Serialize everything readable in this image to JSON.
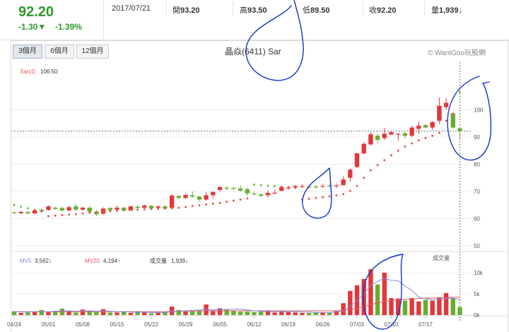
{
  "quote": {
    "price": "92.20",
    "change": "-1.30▼",
    "change_pct": "-1.39%",
    "date": "2017/07/21",
    "open_label": "開",
    "open": "93.20",
    "high_label": "高",
    "high": "93.50",
    "low_label": "低",
    "low": "89.50",
    "close_label": "收",
    "close": "92.20",
    "volume_label": "量",
    "volume": "1,939↓"
  },
  "tabs": [
    "3個月",
    "6個月",
    "12個月"
  ],
  "active_tab": 0,
  "title": "晶焱(6411) Sar",
  "credit": "© WantGoo玩股網",
  "legend": {
    "sar_label": "Sar(4)",
    "sar_value": "106.50"
  },
  "volume_legend": {
    "mv5_label": "MV5",
    "mv5_value": "3,562↓",
    "mv20_label": "MV20",
    "mv20_value": "4,194↑",
    "vol_label": "成交量",
    "vol_value": "1,939↓",
    "panel_title": "成交量"
  },
  "colors": {
    "up": "#e0383b",
    "down": "#69ad30",
    "sar": "#e6594b",
    "sar_down": "#6bbf3a",
    "mv5": "#7b8ce0",
    "mv20": "#e05a63",
    "annotation": "#1732c8"
  },
  "chart_data": {
    "type": "candlestick",
    "price_yticks": [
      50,
      60,
      70,
      80,
      90,
      100
    ],
    "volume_yticks": [
      "0k",
      "5k",
      "10k"
    ],
    "x_ticks": [
      "04/24",
      "05/01",
      "05/08",
      "05/15",
      "05/22",
      "05/29",
      "06/05",
      "06/12",
      "06/19",
      "06/26",
      "07/03",
      "07/10",
      "07/17"
    ],
    "candles": [
      [
        62.3,
        62.0,
        62.6,
        61.8
      ],
      [
        62.0,
        62.5,
        62.8,
        61.7
      ],
      [
        62.4,
        61.9,
        62.7,
        61.6
      ],
      [
        61.9,
        63.0,
        63.3,
        61.6
      ],
      [
        63.3,
        62.8,
        63.8,
        62.4
      ],
      [
        63.2,
        64.5,
        64.9,
        62.9
      ],
      [
        64.0,
        63.6,
        64.4,
        63.2
      ],
      [
        63.9,
        63.0,
        64.4,
        62.6
      ],
      [
        63.0,
        64.2,
        64.6,
        62.7
      ],
      [
        64.5,
        63.3,
        65.5,
        62.9
      ],
      [
        63.3,
        64.0,
        64.4,
        62.9
      ],
      [
        64.0,
        62.5,
        64.5,
        62.1
      ],
      [
        62.6,
        61.6,
        63.2,
        61.0
      ],
      [
        61.8,
        63.7,
        64.2,
        61.4
      ],
      [
        63.9,
        63.1,
        64.3,
        62.7
      ],
      [
        63.3,
        64.0,
        64.8,
        62.9
      ],
      [
        64.0,
        63.0,
        64.3,
        62.6
      ],
      [
        63.0,
        64.5,
        64.8,
        62.7
      ],
      [
        64.4,
        64.0,
        64.9,
        63.4
      ],
      [
        64.0,
        64.8,
        65.2,
        63.6
      ],
      [
        64.7,
        63.8,
        65.0,
        63.4
      ],
      [
        64.0,
        64.5,
        64.9,
        63.5
      ],
      [
        64.5,
        63.8,
        64.9,
        63.4
      ],
      [
        64.0,
        68.5,
        69.0,
        63.8
      ],
      [
        68.3,
        67.6,
        68.8,
        67.0
      ],
      [
        67.6,
        68.7,
        69.3,
        67.2
      ],
      [
        68.6,
        68.1,
        70.0,
        67.6
      ],
      [
        68.1,
        67.0,
        68.5,
        66.4
      ],
      [
        67.0,
        68.6,
        69.8,
        66.6
      ],
      [
        68.6,
        69.8,
        70.0,
        67.4
      ],
      [
        70.5,
        71.6,
        72.0,
        70.0
      ],
      [
        71.4,
        71.1,
        71.8,
        70.4
      ],
      [
        71.2,
        71.1,
        71.9,
        70.7
      ],
      [
        71.1,
        70.3,
        72.3,
        69.8
      ],
      [
        70.8,
        69.3,
        71.4,
        68.4
      ],
      [
        69.2,
        68.9,
        69.8,
        68.6
      ],
      [
        68.9,
        68.4,
        69.3,
        67.8
      ],
      [
        68.6,
        69.5,
        70.4,
        67.8
      ],
      [
        69.3,
        69.5,
        70.6,
        69.0
      ],
      [
        70.2,
        71.6,
        72.1,
        70.4
      ],
      [
        71.2,
        71.4,
        72.0,
        70.5
      ],
      [
        71.5,
        72.0,
        72.4,
        71.4
      ],
      [
        71.6,
        71.9,
        72.6,
        71.4
      ],
      [
        71.8,
        71.7,
        72.3,
        71.2
      ],
      [
        71.8,
        71.5,
        72.2,
        71.1
      ],
      [
        71.9,
        72.0,
        72.7,
        71.5
      ],
      [
        72.2,
        72.0,
        72.5,
        71.5
      ],
      [
        72.0,
        72.2,
        73.0,
        71.2
      ],
      [
        72.3,
        74.4,
        75.6,
        72.4
      ],
      [
        75.0,
        78.0,
        78.4,
        73.6
      ],
      [
        79.0,
        84.0,
        84.3,
        78.6
      ],
      [
        84.0,
        87.5,
        88.1,
        83.5
      ],
      [
        87.3,
        91.0,
        91.8,
        86.9
      ],
      [
        90.5,
        89.0,
        91.2,
        88.0
      ],
      [
        89.6,
        91.2,
        93.4,
        88.9
      ],
      [
        90.9,
        91.8,
        92.2,
        90.8
      ],
      [
        91.1,
        91.2,
        91.6,
        88.6
      ],
      [
        91.4,
        90.5,
        91.8,
        89.5
      ],
      [
        90.5,
        93.5,
        94.2,
        89.8
      ],
      [
        93.0,
        94.2,
        95.7,
        91.2
      ],
      [
        94.4,
        93.5,
        94.7,
        93.2
      ],
      [
        93.5,
        95.5,
        95.9,
        92.6
      ],
      [
        96.0,
        101.5,
        104.5,
        94.8
      ],
      [
        101.0,
        102.6,
        104.3,
        100.1
      ],
      [
        98.7,
        93.5,
        99.2,
        93.1
      ],
      [
        93.2,
        92.2,
        93.5,
        89.5
      ]
    ],
    "sar": [
      65.0,
      64.4,
      63.8,
      63.2,
      62.6,
      60.9,
      61.1,
      61.3,
      61.5,
      61.7,
      61.9,
      62.1,
      62.3,
      62.5,
      62.7,
      62.9,
      63.1,
      63.2,
      63.3,
      63.4,
      63.5,
      63.6,
      63.7,
      63.8,
      64.0,
      64.3,
      64.6,
      64.9,
      65.2,
      65.5,
      65.8,
      66.2,
      66.6,
      67.0,
      67.4,
      72.5,
      72.3,
      72.1,
      71.9,
      71.7,
      71.5,
      71.3,
      67.0,
      67.3,
      67.6,
      67.9,
      68.2,
      68.6,
      69.0,
      70.2,
      72.0,
      75.0,
      77.8,
      79.7,
      81.5,
      83.3,
      85.0,
      86.5,
      87.7,
      88.8,
      89.6,
      90.5,
      91.5,
      96.0,
      98.5,
      106.5
    ],
    "volume_k": [
      0.9,
      0.5,
      0.6,
      0.8,
      1.2,
      0.7,
      1.0,
      1.5,
      0.9,
      0.6,
      1.3,
      1.0,
      0.7,
      1.4,
      0.6,
      0.6,
      0.8,
      0.5,
      0.9,
      0.6,
      0.4,
      0.5,
      0.6,
      2.0,
      1.2,
      0.8,
      0.9,
      1.0,
      2.5,
      0.9,
      1.6,
      1.3,
      1.0,
      0.8,
      0.8,
      0.7,
      0.8,
      1.1,
      0.6,
      0.9,
      0.7,
      0.6,
      0.5,
      0.5,
      0.7,
      0.6,
      0.5,
      0.9,
      2.8,
      5.7,
      7.0,
      8.5,
      10.8,
      7.2,
      10.0,
      4.0,
      3.9,
      3.4,
      4.0,
      3.2,
      3.6,
      3.4,
      4.2,
      5.2,
      4.0,
      1.9
    ],
    "mv5_k": [
      0.8,
      0.7,
      0.7,
      0.8,
      0.8,
      0.8,
      0.9,
      1.0,
      1.0,
      0.9,
      1.0,
      1.0,
      0.9,
      1.0,
      0.9,
      0.8,
      0.8,
      0.7,
      0.6,
      0.7,
      0.6,
      0.6,
      0.6,
      0.8,
      0.9,
      1.0,
      1.1,
      1.2,
      1.3,
      1.2,
      1.4,
      1.3,
      1.4,
      1.4,
      1.2,
      1.0,
      0.9,
      0.8,
      0.8,
      0.8,
      0.8,
      0.8,
      0.7,
      0.7,
      0.6,
      0.6,
      0.6,
      0.7,
      1.0,
      2.1,
      3.4,
      4.9,
      7.0,
      7.9,
      8.7,
      8.2,
      8.1,
      6.8,
      5.9,
      4.2,
      3.9,
      3.6,
      3.7,
      3.9,
      4.0,
      3.6
    ],
    "mv20_k": [
      0.8,
      0.8,
      0.8,
      0.8,
      0.8,
      0.8,
      0.8,
      0.8,
      0.8,
      0.8,
      0.8,
      0.8,
      0.8,
      0.8,
      0.8,
      0.8,
      0.8,
      0.8,
      0.8,
      0.8,
      0.8,
      0.8,
      0.8,
      0.9,
      0.9,
      0.9,
      0.9,
      1.0,
      1.0,
      1.0,
      1.0,
      1.0,
      1.0,
      1.0,
      1.0,
      1.0,
      1.0,
      1.0,
      1.0,
      1.0,
      1.0,
      1.0,
      1.0,
      1.0,
      1.0,
      1.0,
      1.0,
      1.0,
      1.1,
      1.3,
      1.6,
      2.0,
      2.5,
      2.8,
      3.2,
      3.4,
      3.6,
      3.7,
      3.8,
      3.9,
      4.0,
      4.0,
      4.1,
      4.1,
      4.2,
      4.2
    ]
  }
}
